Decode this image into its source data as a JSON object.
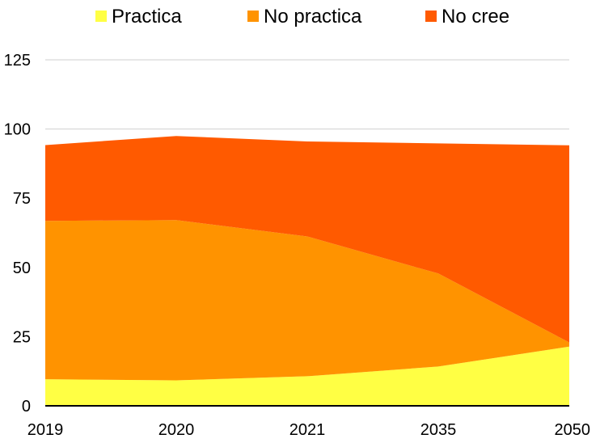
{
  "chart_data": {
    "type": "area",
    "stacked": true,
    "categories": [
      "2019",
      "2020",
      "2021",
      "2035",
      "2050"
    ],
    "series": [
      {
        "name": "Practica",
        "color": "#ffff44",
        "values": [
          9.6,
          9.2,
          10.7,
          14.2,
          21.4
        ]
      },
      {
        "name": "No practica",
        "color": "#ff9300",
        "values": [
          57.2,
          57.9,
          50.5,
          33.6,
          1.5
        ]
      },
      {
        "name": "No cree",
        "color": "#ff5a00",
        "values": [
          27.4,
          30.4,
          34.3,
          47.0,
          71.2
        ]
      }
    ],
    "ylim": [
      0,
      125
    ],
    "yticks": [
      "0",
      "25",
      "50",
      "75",
      "100",
      "125"
    ],
    "grid": true,
    "legend": "top"
  }
}
